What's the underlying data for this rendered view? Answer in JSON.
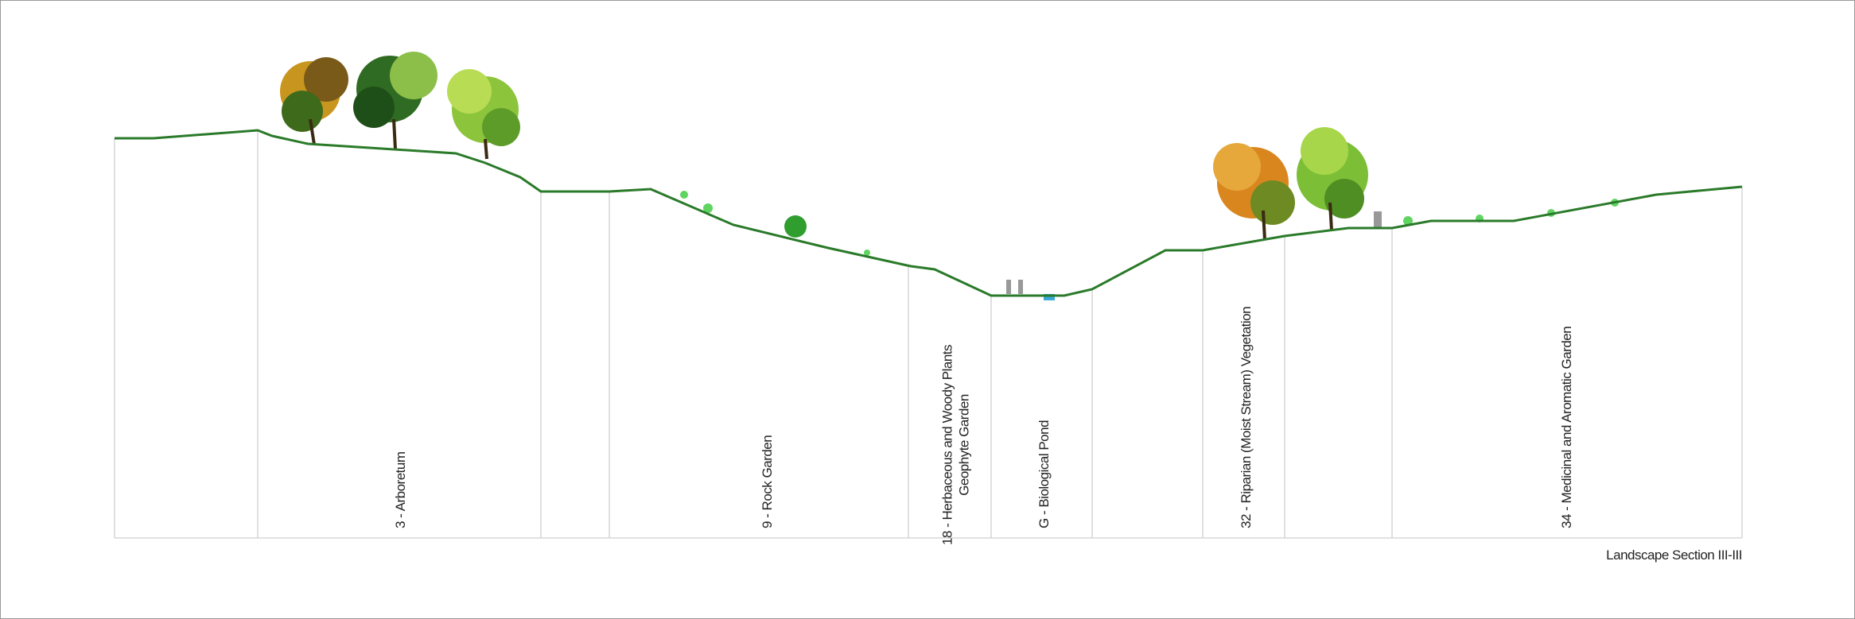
{
  "title": "Landscape Section III-III",
  "sections": [
    {
      "lines": [
        "3 - Arboretum"
      ]
    },
    {
      "lines": [
        "9 - Rock Garden"
      ]
    },
    {
      "lines": [
        "18 - Herbaceous and Woody Plants",
        "Geophyte Garden"
      ]
    },
    {
      "lines": [
        "G - Biological Pond"
      ]
    },
    {
      "lines": [
        "32 - Riparian (Moist Stream) Vegetation"
      ]
    },
    {
      "lines": [
        "34 - Medicinal and Aromatic Garden"
      ]
    }
  ]
}
